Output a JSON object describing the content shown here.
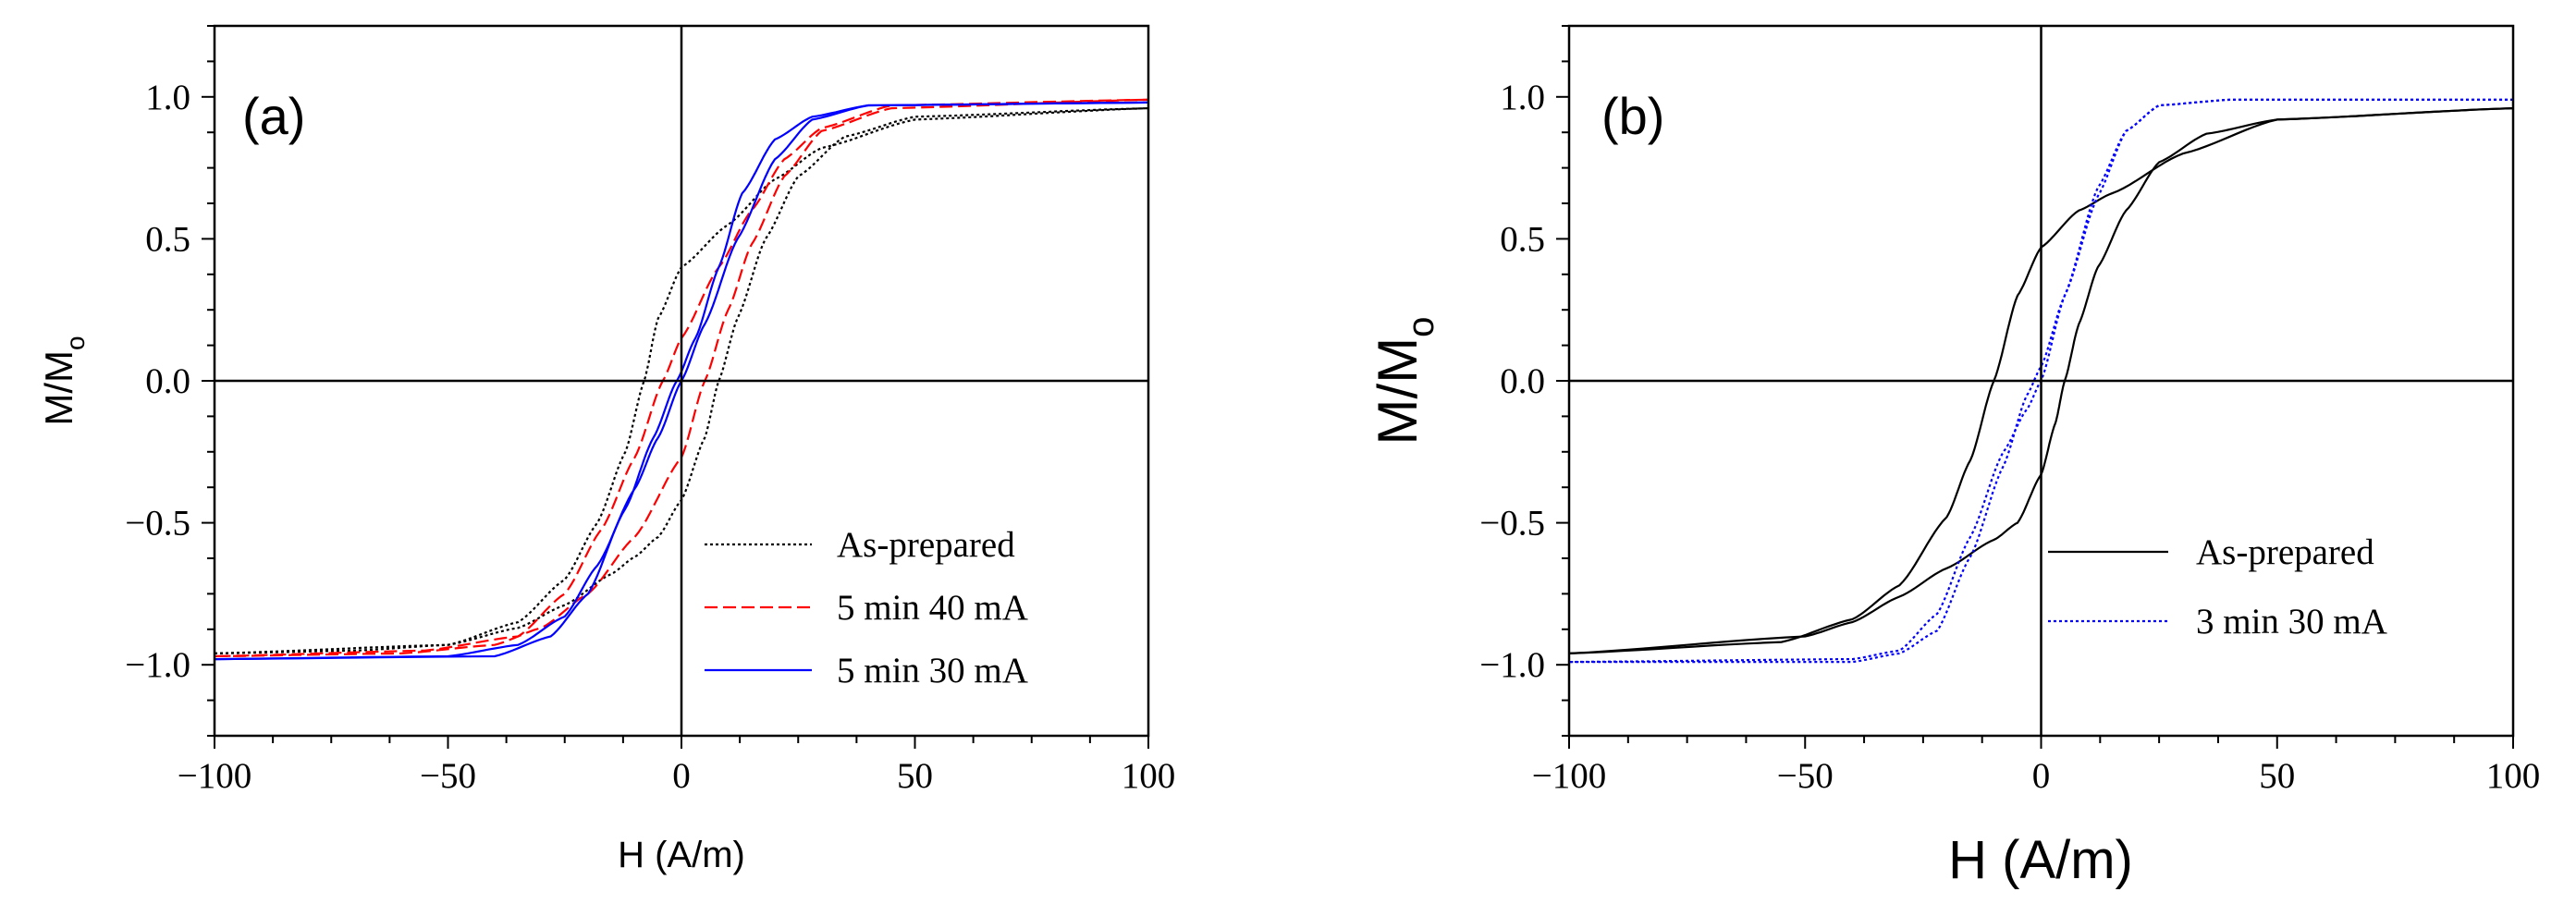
{
  "chart_data": [
    {
      "type": "line",
      "panel_label": "(a)",
      "xlabel": "H (A/m)",
      "ylabel": {
        "main": "M/M",
        "sub": "o"
      },
      "xlim": [
        -100,
        100
      ],
      "ylim": [
        -1.25,
        1.25
      ],
      "xticks": [
        -100,
        -50,
        0,
        50,
        100
      ],
      "xtick_labels": [
        "−100",
        "−50",
        "0",
        "50",
        "100"
      ],
      "yticks": [
        -1.0,
        -0.5,
        0.0,
        0.5,
        1.0
      ],
      "ytick_labels": [
        "−1.0",
        "−0.5",
        "0.0",
        "0.5",
        "1.0"
      ],
      "legend_position": "bottom-right",
      "series": [
        {
          "name": "As-prepared",
          "color": "#000000",
          "dash": "dotted",
          "Ms": 0.96,
          "ascending": [
            [
              -100,
              -0.96
            ],
            [
              -70,
              -0.95
            ],
            [
              -50,
              -0.93
            ],
            [
              -35,
              -0.87
            ],
            [
              -25,
              -0.79
            ],
            [
              -15,
              -0.68
            ],
            [
              -10,
              -0.62
            ],
            [
              -5,
              -0.55
            ],
            [
              0,
              -0.42
            ],
            [
              5,
              -0.2
            ],
            [
              8,
              0.0
            ],
            [
              12,
              0.22
            ],
            [
              18,
              0.5
            ],
            [
              25,
              0.72
            ],
            [
              35,
              0.86
            ],
            [
              50,
              0.93
            ],
            [
              100,
              0.96
            ]
          ],
          "descending": [
            [
              100,
              0.96
            ],
            [
              50,
              0.92
            ],
            [
              30,
              0.82
            ],
            [
              20,
              0.71
            ],
            [
              10,
              0.55
            ],
            [
              0,
              0.4
            ],
            [
              -5,
              0.22
            ],
            [
              -8,
              0.0
            ],
            [
              -12,
              -0.25
            ],
            [
              -18,
              -0.5
            ],
            [
              -25,
              -0.7
            ],
            [
              -35,
              -0.85
            ],
            [
              -50,
              -0.93
            ],
            [
              -100,
              -0.96
            ]
          ]
        },
        {
          "name": "5 min 40 mA",
          "color": "#ff0000",
          "dash": "dashed",
          "Ms": 0.99,
          "ascending": [
            [
              -100,
              -0.97
            ],
            [
              -60,
              -0.96
            ],
            [
              -40,
              -0.93
            ],
            [
              -30,
              -0.87
            ],
            [
              -20,
              -0.75
            ],
            [
              -10,
              -0.55
            ],
            [
              0,
              -0.27
            ],
            [
              5,
              0.0
            ],
            [
              10,
              0.25
            ],
            [
              15,
              0.48
            ],
            [
              22,
              0.72
            ],
            [
              30,
              0.88
            ],
            [
              45,
              0.96
            ],
            [
              100,
              0.99
            ]
          ],
          "descending": [
            [
              100,
              0.99
            ],
            [
              45,
              0.97
            ],
            [
              30,
              0.89
            ],
            [
              22,
              0.78
            ],
            [
              15,
              0.6
            ],
            [
              8,
              0.4
            ],
            [
              0,
              0.15
            ],
            [
              -4,
              0.0
            ],
            [
              -10,
              -0.27
            ],
            [
              -17,
              -0.52
            ],
            [
              -25,
              -0.75
            ],
            [
              -35,
              -0.9
            ],
            [
              -55,
              -0.95
            ],
            [
              -100,
              -0.97
            ]
          ]
        },
        {
          "name": "5 min 30 mA",
          "color": "#0000ff",
          "dash": "solid",
          "Ms": 0.98,
          "ascending": [
            [
              -100,
              -0.98
            ],
            [
              -50,
              -0.97
            ],
            [
              -35,
              -0.93
            ],
            [
              -25,
              -0.83
            ],
            [
              -18,
              -0.65
            ],
            [
              -10,
              -0.38
            ],
            [
              -5,
              -0.2
            ],
            [
              0,
              0.0
            ],
            [
              5,
              0.2
            ],
            [
              12,
              0.5
            ],
            [
              20,
              0.78
            ],
            [
              28,
              0.92
            ],
            [
              40,
              0.97
            ],
            [
              100,
              0.98
            ]
          ],
          "descending": [
            [
              100,
              0.98
            ],
            [
              40,
              0.97
            ],
            [
              28,
              0.93
            ],
            [
              20,
              0.85
            ],
            [
              13,
              0.66
            ],
            [
              8,
              0.4
            ],
            [
              3,
              0.15
            ],
            [
              -1,
              0.0
            ],
            [
              -6,
              -0.2
            ],
            [
              -12,
              -0.45
            ],
            [
              -20,
              -0.75
            ],
            [
              -28,
              -0.9
            ],
            [
              -40,
              -0.97
            ],
            [
              -100,
              -0.98
            ]
          ]
        }
      ]
    },
    {
      "type": "line",
      "panel_label": "(b)",
      "xlabel": "H (A/m)",
      "ylabel": {
        "main": "M/M",
        "sub": "o"
      },
      "xlim": [
        -100,
        100
      ],
      "ylim": [
        -1.25,
        1.25
      ],
      "xticks": [
        -100,
        -50,
        0,
        50,
        100
      ],
      "xtick_labels": [
        "−100",
        "−50",
        "0",
        "50",
        "100"
      ],
      "yticks": [
        -1.0,
        -0.5,
        0.0,
        0.5,
        1.0
      ],
      "ytick_labels": [
        "−1.0",
        "−0.5",
        "0.0",
        "0.5",
        "1.0"
      ],
      "legend_position": "bottom-right",
      "series": [
        {
          "name": "As-prepared",
          "color": "#000000",
          "dash": "solid",
          "Ms": 0.96,
          "ascending": [
            [
              -100,
              -0.96
            ],
            [
              -50,
              -0.9
            ],
            [
              -40,
              -0.85
            ],
            [
              -30,
              -0.76
            ],
            [
              -20,
              -0.66
            ],
            [
              -10,
              -0.56
            ],
            [
              -5,
              -0.5
            ],
            [
              0,
              -0.33
            ],
            [
              3,
              -0.15
            ],
            [
              5,
              0.0
            ],
            [
              8,
              0.2
            ],
            [
              12,
              0.4
            ],
            [
              18,
              0.6
            ],
            [
              25,
              0.77
            ],
            [
              35,
              0.87
            ],
            [
              50,
              0.92
            ],
            [
              100,
              0.96
            ]
          ],
          "descending": [
            [
              100,
              0.96
            ],
            [
              50,
              0.92
            ],
            [
              30,
              0.8
            ],
            [
              15,
              0.66
            ],
            [
              8,
              0.6
            ],
            [
              0,
              0.47
            ],
            [
              -5,
              0.3
            ],
            [
              -10,
              0.0
            ],
            [
              -15,
              -0.28
            ],
            [
              -20,
              -0.48
            ],
            [
              -30,
              -0.72
            ],
            [
              -40,
              -0.84
            ],
            [
              -55,
              -0.92
            ],
            [
              -100,
              -0.96
            ]
          ]
        },
        {
          "name": "3 min 30 mA",
          "color": "#0000ff",
          "dash": "dotted",
          "Ms": 0.99,
          "ascending": [
            [
              -100,
              -0.99
            ],
            [
              -40,
              -0.98
            ],
            [
              -30,
              -0.95
            ],
            [
              -22,
              -0.82
            ],
            [
              -15,
              -0.55
            ],
            [
              -8,
              -0.25
            ],
            [
              -3,
              -0.1
            ],
            [
              0,
              0.0
            ],
            [
              5,
              0.3
            ],
            [
              12,
              0.65
            ],
            [
              18,
              0.88
            ],
            [
              25,
              0.97
            ],
            [
              40,
              0.99
            ],
            [
              100,
              0.99
            ]
          ],
          "descending": [
            [
              100,
              0.99
            ],
            [
              40,
              0.99
            ],
            [
              25,
              0.97
            ],
            [
              18,
              0.88
            ],
            [
              12,
              0.68
            ],
            [
              5,
              0.3
            ],
            [
              0,
              0.05
            ],
            [
              -3,
              -0.05
            ],
            [
              -8,
              -0.3
            ],
            [
              -15,
              -0.62
            ],
            [
              -22,
              -0.88
            ],
            [
              -30,
              -0.96
            ],
            [
              -40,
              -0.99
            ],
            [
              -100,
              -0.99
            ]
          ]
        }
      ]
    }
  ]
}
